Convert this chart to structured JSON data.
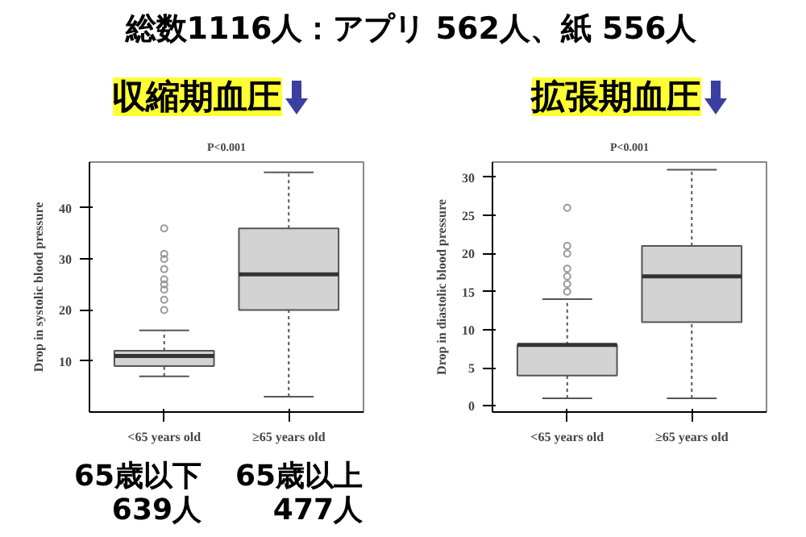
{
  "chart_data": [
    {
      "type": "box",
      "title": "収縮期血圧",
      "subtitle": "P<0.001",
      "ylabel": "Drop in systolic blood pressure",
      "categories": [
        "<65 years old",
        "≥65 years old"
      ],
      "series": [
        {
          "color": "#d3d3d3",
          "boxes": [
            {
              "low": 7,
              "q1": 9,
              "median": 11,
              "q3": 12,
              "high": 16,
              "outliers": [
                20,
                22,
                24,
                25,
                26,
                28,
                30,
                31,
                36
              ]
            },
            {
              "low": 3,
              "q1": 20,
              "median": 27,
              "q3": 36,
              "high": 47
            }
          ]
        }
      ],
      "ylim": [
        0,
        49
      ],
      "yticks": [
        10,
        20,
        30,
        40
      ],
      "annotations": [
        "総数1116人：アプリ 562人、紙 556人",
        "65歳以下\n639人",
        "65歳以上\n477人"
      ]
    },
    {
      "type": "box",
      "title": "拡張期血圧",
      "subtitle": "P<0.001",
      "ylabel": "Drop in diastolic blood pressure",
      "categories": [
        "<65 years old",
        "≥65 years old"
      ],
      "series": [
        {
          "color": "#d3d3d3",
          "boxes": [
            {
              "low": 1,
              "q1": 4,
              "median": 8,
              "q3": 8,
              "high": 14,
              "outliers": [
                15,
                16,
                17,
                18,
                20,
                21,
                26
              ]
            },
            {
              "low": 1,
              "q1": 11,
              "median": 17,
              "q3": 21,
              "high": 31
            }
          ]
        }
      ],
      "ylim": [
        -0.8,
        32
      ],
      "yticks": [
        0,
        5,
        10,
        15,
        20,
        25,
        30
      ]
    }
  ]
}
